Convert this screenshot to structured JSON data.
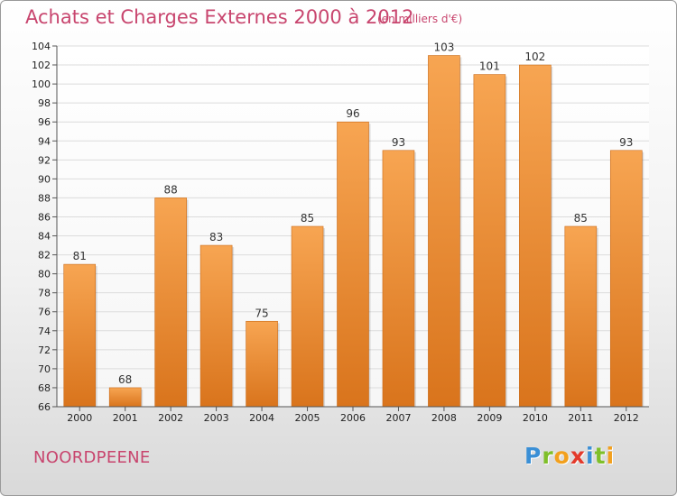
{
  "header": {
    "title": "Achats et Charges Externes 2000 à 2012",
    "subtitle": "(en milliers d'€)"
  },
  "footer": {
    "commune": "NOORDPEENE",
    "logo_letters": [
      {
        "ch": "P",
        "color": "#3a8fd6"
      },
      {
        "ch": "r",
        "color": "#7fbf2a"
      },
      {
        "ch": "o",
        "color": "#f2a01e"
      },
      {
        "ch": "x",
        "color": "#e33a2b"
      },
      {
        "ch": "i",
        "color": "#3a8fd6"
      },
      {
        "ch": "t",
        "color": "#7fbf2a"
      },
      {
        "ch": "i",
        "color": "#f2a01e"
      }
    ]
  },
  "colors": {
    "title": "#c8456e",
    "bar_top": "#f7a552",
    "bar_bottom": "#d9741c",
    "grid": "#dcdcdc"
  },
  "chart_data": {
    "type": "bar",
    "title": "Achats et Charges Externes 2000 à 2012",
    "subtitle": "(en milliers d'€)",
    "categories": [
      "2000",
      "2001",
      "2002",
      "2003",
      "2004",
      "2005",
      "2006",
      "2007",
      "2008",
      "2009",
      "2010",
      "2011",
      "2012"
    ],
    "values": [
      81,
      68,
      88,
      83,
      75,
      85,
      96,
      93,
      103,
      101,
      102,
      85,
      93
    ],
    "ylim": [
      66,
      104
    ],
    "yticks": [
      66,
      68,
      70,
      72,
      74,
      76,
      78,
      80,
      82,
      84,
      86,
      88,
      90,
      92,
      94,
      96,
      98,
      100,
      102,
      104
    ],
    "xlabel": "",
    "ylabel": "",
    "grid": true,
    "data_labels": true
  }
}
